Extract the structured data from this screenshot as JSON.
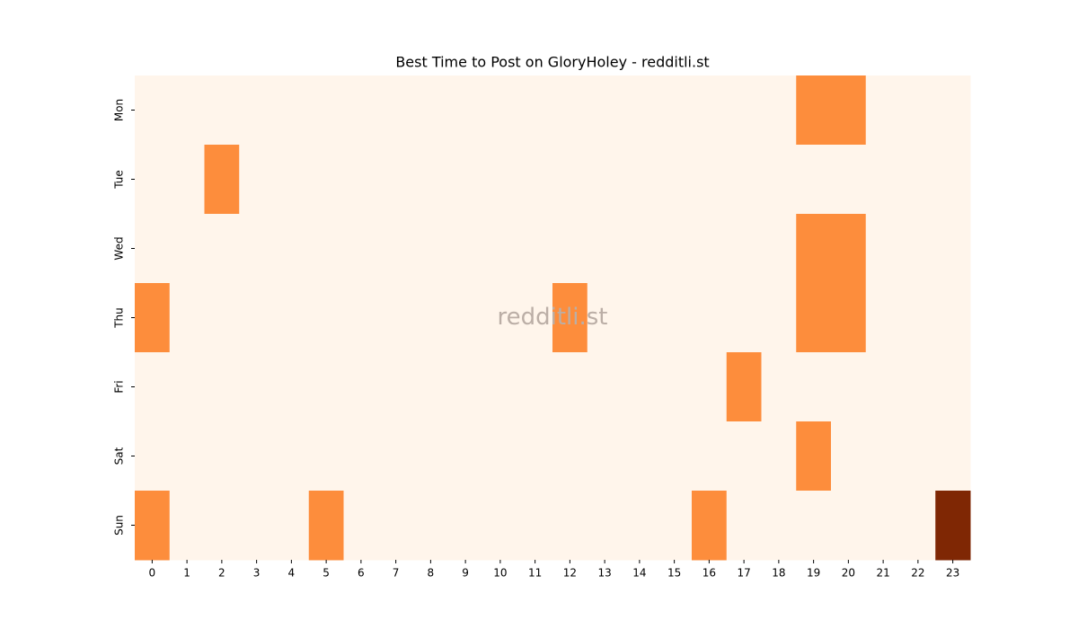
{
  "chart_data": {
    "type": "heatmap",
    "title": "Best Time to Post on GloryHoley - redditli.st",
    "watermark": "redditli.st",
    "x": [
      0,
      1,
      2,
      3,
      4,
      5,
      6,
      7,
      8,
      9,
      10,
      11,
      12,
      13,
      14,
      15,
      16,
      17,
      18,
      19,
      20,
      21,
      22,
      23
    ],
    "y": [
      "Mon",
      "Tue",
      "Wed",
      "Thu",
      "Fri",
      "Sat",
      "Sun"
    ],
    "values": [
      [
        0,
        0,
        0,
        0,
        0,
        0,
        0,
        0,
        0,
        0,
        0,
        0,
        0,
        0,
        0,
        0,
        0,
        0,
        0,
        1,
        1,
        0,
        0,
        0
      ],
      [
        0,
        0,
        1,
        0,
        0,
        0,
        0,
        0,
        0,
        0,
        0,
        0,
        0,
        0,
        0,
        0,
        0,
        0,
        0,
        0,
        0,
        0,
        0,
        0
      ],
      [
        0,
        0,
        0,
        0,
        0,
        0,
        0,
        0,
        0,
        0,
        0,
        0,
        0,
        0,
        0,
        0,
        0,
        0,
        0,
        1,
        1,
        0,
        0,
        0
      ],
      [
        1,
        0,
        0,
        0,
        0,
        0,
        0,
        0,
        0,
        0,
        0,
        0,
        1,
        0,
        0,
        0,
        0,
        0,
        0,
        1,
        1,
        0,
        0,
        0
      ],
      [
        0,
        0,
        0,
        0,
        0,
        0,
        0,
        0,
        0,
        0,
        0,
        0,
        0,
        0,
        0,
        0,
        0,
        1,
        0,
        0,
        0,
        0,
        0,
        0
      ],
      [
        0,
        0,
        0,
        0,
        0,
        0,
        0,
        0,
        0,
        0,
        0,
        0,
        0,
        0,
        0,
        0,
        0,
        0,
        0,
        1,
        0,
        0,
        0,
        0
      ],
      [
        1,
        0,
        0,
        0,
        0,
        1,
        0,
        0,
        0,
        0,
        0,
        0,
        0,
        0,
        0,
        0,
        1,
        0,
        0,
        0,
        0,
        0,
        0,
        2
      ]
    ],
    "zlim": [
      0,
      2
    ],
    "colorscale": [
      "#fff5eb",
      "#fd8d3c",
      "#7f2704"
    ]
  }
}
